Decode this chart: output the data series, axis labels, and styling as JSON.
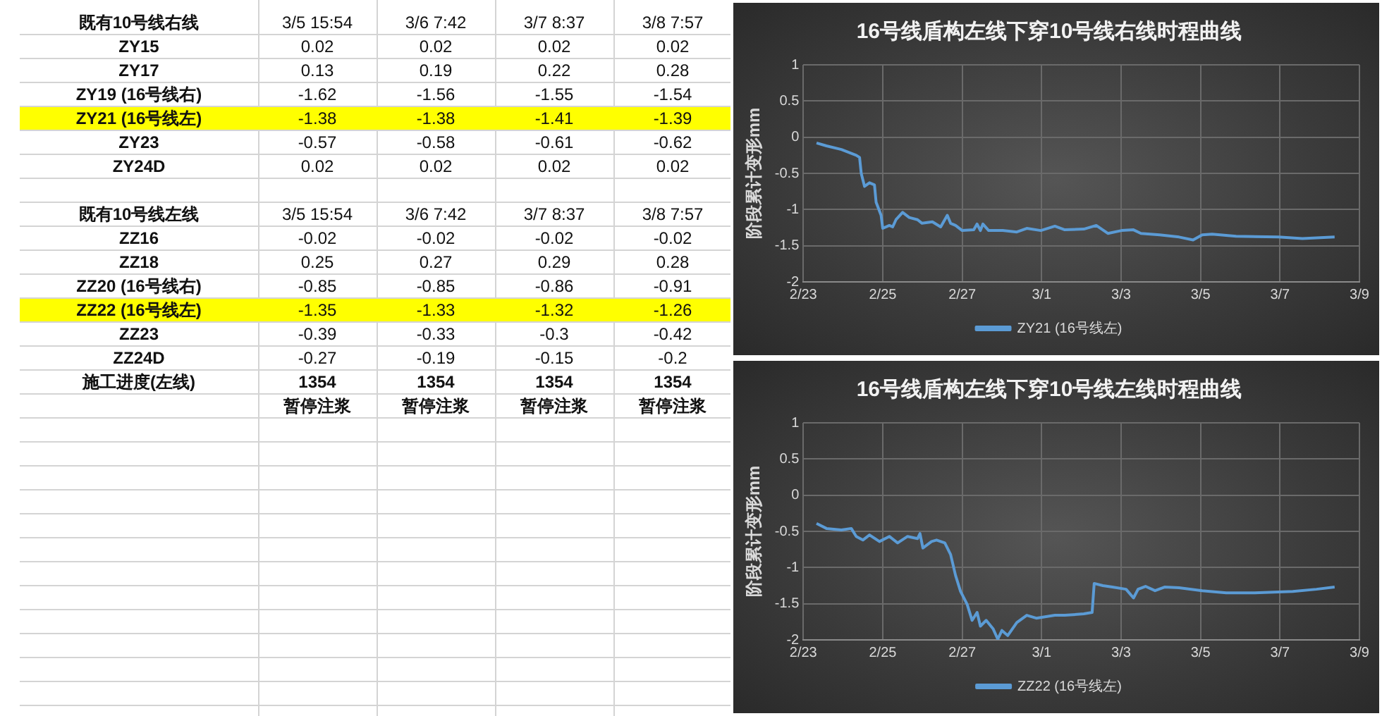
{
  "chart_data": [
    {
      "type": "other",
      "annotations": [
        "既有10号线右线",
        "3/5 15:54",
        "3/6 7:42",
        "3/7 8:37",
        "3/8 7:57",
        "ZY15",
        "0.02",
        "0.02",
        "0.02",
        "0.02",
        "ZY17",
        "0.13",
        "0.19",
        "0.22",
        "0.28",
        "ZY19 (16号线右)",
        "-1.62",
        "-1.56",
        "-1.55",
        "-1.54",
        "ZY21 (16号线左)",
        "-1.38",
        "-1.38",
        "-1.41",
        "-1.39",
        "ZY23",
        "-0.57",
        "-0.58",
        "-0.61",
        "-0.62",
        "ZY24D",
        "0.02",
        "0.02",
        "0.02",
        "0.02",
        "既有10号线左线",
        "3/5 15:54",
        "3/6 7:42",
        "3/7 8:37",
        "3/8 7:57",
        "ZZ16",
        "-0.02",
        "-0.02",
        "-0.02",
        "-0.02",
        "ZZ18",
        "0.25",
        "0.27",
        "0.29",
        "0.28",
        "ZZ20 (16号线右)",
        "-0.85",
        "-0.85",
        "-0.86",
        "-0.91",
        "ZZ22 (16号线左)",
        "-1.35",
        "-1.33",
        "-1.32",
        "-1.26",
        "ZZ23",
        "-0.39",
        "-0.33",
        "-0.3",
        "-0.42",
        "ZZ24D",
        "-0.27",
        "-0.19",
        "-0.15",
        "-0.2",
        "施工进度(左线)",
        "1354",
        "1354",
        "1354",
        "1354",
        "暂停注浆",
        "暂停注浆",
        "暂停注浆",
        "暂停注浆"
      ]
    },
    {
      "type": "line",
      "title": "16号线盾构左线下穿10号线右线时程曲线",
      "ylabel": "阶段累计变形mm",
      "grid": true,
      "legend": "bottom",
      "xlim": [
        "--02-23",
        "--03-09"
      ],
      "xticks": [
        {
          "value": "--02-23",
          "label": "2/23"
        },
        {
          "value": "--02-25",
          "label": "2/25"
        },
        {
          "value": "--02-27",
          "label": "2/27"
        },
        {
          "value": "--03-01",
          "label": "3/1"
        },
        {
          "value": "--03-03",
          "label": "3/3"
        },
        {
          "value": "--03-05",
          "label": "3/5"
        },
        {
          "value": "--03-07",
          "label": "3/7"
        },
        {
          "value": "--03-09",
          "label": "3/9"
        }
      ],
      "ylim": [
        -2,
        1
      ],
      "yticks": [
        -2,
        -1.5,
        -1,
        -0.5,
        0,
        0.5,
        1
      ],
      "x": [
        "--02-23T08:00",
        "--02-23T14:00",
        "--02-23T23:00",
        "--02-24T08:00",
        "--02-24T10:00",
        "--02-24T11:00",
        "--02-24T13:00",
        "--02-24T16:00",
        "--02-24T19:00",
        "--02-24T20:00",
        "--02-24T23:00",
        "--02-25T00:00",
        "--02-25T04:00",
        "--02-25T06:00",
        "--02-25T08:00",
        "--02-25T12:00",
        "--02-25T16:00",
        "--02-25T21:00",
        "--02-25T23:45",
        "--02-26T06:00",
        "--02-26T11:00",
        "--02-26T15:00",
        "--02-26T17:00",
        "--02-26T20:00",
        "--02-27T00:00",
        "--02-27T07:00",
        "--02-27T09:00",
        "--02-27T11:00",
        "--02-27T12:30",
        "--02-27T16:00",
        "--02-28T00:30",
        "--02-28T09:00",
        "--02-28T15:00",
        "--02-28T23:30",
        "--03-01T08:00",
        "--03-01T14:00",
        "--03-02T01:30",
        "--03-02T09:00",
        "--03-02T16:00",
        "--03-03T00:15",
        "--03-03T07:30",
        "--03-03T12:00",
        "--03-03T23:15",
        "--03-04T11:00",
        "--03-04T19:30",
        "--03-05T01:00",
        "--03-05T07:00",
        "--03-05T21:30",
        "--03-06T23:00",
        "--03-07T13:30",
        "--03-08T09:00"
      ],
      "series": [
        {
          "name": "ZY21 (16号线左)",
          "color": "#5b9bd5",
          "values": [
            -0.08,
            -0.12,
            -0.17,
            -0.25,
            -0.28,
            -0.5,
            -0.68,
            -0.63,
            -0.66,
            -0.9,
            -1.08,
            -1.26,
            -1.22,
            -1.24,
            -1.14,
            -1.04,
            -1.11,
            -1.14,
            -1.19,
            -1.17,
            -1.24,
            -1.08,
            -1.19,
            -1.22,
            -1.29,
            -1.28,
            -1.2,
            -1.29,
            -1.2,
            -1.29,
            -1.29,
            -1.31,
            -1.26,
            -1.29,
            -1.23,
            -1.28,
            -1.27,
            -1.22,
            -1.33,
            -1.29,
            -1.28,
            -1.33,
            -1.35,
            -1.38,
            -1.42,
            -1.35,
            -1.34,
            -1.37,
            -1.38,
            -1.4,
            -1.38
          ]
        }
      ]
    },
    {
      "type": "line",
      "title": "16号线盾构左线下穿10号线左线时程曲线",
      "ylabel": "阶段累计变形mm",
      "grid": true,
      "legend": "bottom",
      "xlim": [
        "--02-23",
        "--03-09"
      ],
      "xticks": [
        {
          "value": "--02-23",
          "label": "2/23"
        },
        {
          "value": "--02-25",
          "label": "2/25"
        },
        {
          "value": "--02-27",
          "label": "2/27"
        },
        {
          "value": "--03-01",
          "label": "3/1"
        },
        {
          "value": "--03-03",
          "label": "3/3"
        },
        {
          "value": "--03-05",
          "label": "3/5"
        },
        {
          "value": "--03-07",
          "label": "3/7"
        },
        {
          "value": "--03-09",
          "label": "3/9"
        }
      ],
      "ylim": [
        -2,
        1
      ],
      "yticks": [
        -2,
        -1.5,
        -1,
        -0.5,
        0,
        0.5,
        1
      ],
      "x": [
        "--02-23T08:00",
        "--02-23T14:00",
        "--02-23T23:00",
        "--02-24T05:00",
        "--02-24T08:00",
        "--02-24T12:00",
        "--02-24T16:00",
        "--02-24T22:00",
        "--02-25T04:00",
        "--02-25T09:00",
        "--02-25T15:00",
        "--02-25T21:00",
        "--02-25T22:30",
        "--02-26T00:15",
        "--02-26T05:30",
        "--02-26T08:30",
        "--02-26T13:30",
        "--02-26T17:00",
        "--02-26T20:00",
        "--02-26T23:00",
        "--02-27T03:00",
        "--02-27T06:00",
        "--02-27T09:00",
        "--02-27T11:00",
        "--02-27T14:30",
        "--02-27T18:45",
        "--02-27T21:30",
        "--02-28T00:00",
        "--02-28T03:30",
        "--02-28T09:00",
        "--02-28T15:00",
        "--02-28T20:45",
        "--03-01T08:00",
        "--03-01T14:00",
        "--03-02T01:30",
        "--03-02T06:30",
        "--03-02T07:45",
        "--03-02T13:00",
        "--03-02T18:45",
        "--03-03T03:00",
        "--03-03T07:30",
        "--03-03T10:15",
        "--03-03T14:45",
        "--03-03T20:30",
        "--03-04T02:15",
        "--03-04T11:00",
        "--03-05T01:00",
        "--03-05T15:30",
        "--03-06T08:45",
        "--03-07T07:45",
        "--03-07T22:00",
        "--03-08T09:00"
      ],
      "series": [
        {
          "name": "ZZ22 (16号线左)",
          "color": "#5b9bd5",
          "values": [
            -0.39,
            -0.46,
            -0.48,
            -0.46,
            -0.57,
            -0.62,
            -0.55,
            -0.64,
            -0.57,
            -0.66,
            -0.57,
            -0.6,
            -0.53,
            -0.73,
            -0.64,
            -0.62,
            -0.66,
            -0.82,
            -1.11,
            -1.33,
            -1.51,
            -1.73,
            -1.62,
            -1.81,
            -1.73,
            -1.85,
            -1.99,
            -1.87,
            -1.94,
            -1.76,
            -1.66,
            -1.7,
            -1.66,
            -1.66,
            -1.64,
            -1.62,
            -1.22,
            -1.25,
            -1.27,
            -1.3,
            -1.42,
            -1.3,
            -1.26,
            -1.32,
            -1.27,
            -1.28,
            -1.32,
            -1.35,
            -1.35,
            -1.33,
            -1.3,
            -1.27
          ]
        }
      ]
    }
  ]
}
